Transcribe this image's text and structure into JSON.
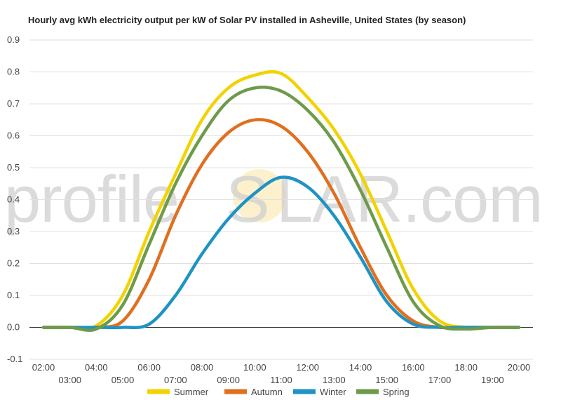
{
  "chart_data": {
    "type": "line",
    "title": "Hourly avg kWh electricity output per kW of Solar PV installed in Asheville, United States (by season)",
    "xlabel": "",
    "ylabel": "",
    "x": [
      "02:00",
      "03:00",
      "04:00",
      "05:00",
      "06:00",
      "07:00",
      "08:00",
      "09:00",
      "10:00",
      "11:00",
      "12:00",
      "13:00",
      "14:00",
      "15:00",
      "16:00",
      "17:00",
      "18:00",
      "19:00",
      "20:00"
    ],
    "ylim": [
      -0.1,
      0.9
    ],
    "yticks": [
      "-0.1",
      "0.0",
      "0.1",
      "0.2",
      "0.3",
      "0.4",
      "0.5",
      "0.6",
      "0.7",
      "0.8",
      "0.9"
    ],
    "grid": true,
    "legend_position": "bottom",
    "series": [
      {
        "name": "Summer",
        "color": "#f2d300",
        "values": [
          0.0,
          0.0,
          0.005,
          0.1,
          0.3,
          0.48,
          0.65,
          0.75,
          0.79,
          0.795,
          0.72,
          0.62,
          0.48,
          0.3,
          0.12,
          0.02,
          0.0,
          0.0,
          0.0
        ]
      },
      {
        "name": "Autumn",
        "color": "#e06f1f",
        "values": [
          0.0,
          0.0,
          0.0,
          0.02,
          0.15,
          0.35,
          0.51,
          0.61,
          0.65,
          0.63,
          0.55,
          0.42,
          0.25,
          0.1,
          0.02,
          0.0,
          0.0,
          0.0,
          0.0
        ]
      },
      {
        "name": "Winter",
        "color": "#1f93c4",
        "values": [
          0.0,
          0.0,
          0.0,
          0.0,
          0.01,
          0.1,
          0.23,
          0.34,
          0.42,
          0.47,
          0.44,
          0.35,
          0.22,
          0.08,
          0.01,
          0.0,
          0.0,
          0.0,
          0.0
        ]
      },
      {
        "name": "Spring",
        "color": "#6e9b4a",
        "values": [
          0.0,
          0.0,
          -0.005,
          0.07,
          0.26,
          0.45,
          0.6,
          0.71,
          0.75,
          0.74,
          0.68,
          0.58,
          0.43,
          0.25,
          0.08,
          0.005,
          -0.005,
          0.0,
          0.0
        ]
      }
    ]
  },
  "watermark": {
    "left": "profile",
    "mid": "S",
    "right": "LAR.com",
    "sun_color": "#f5d76e"
  },
  "colors": {
    "grid": "#e0e0e0",
    "baseline": "#333333"
  }
}
